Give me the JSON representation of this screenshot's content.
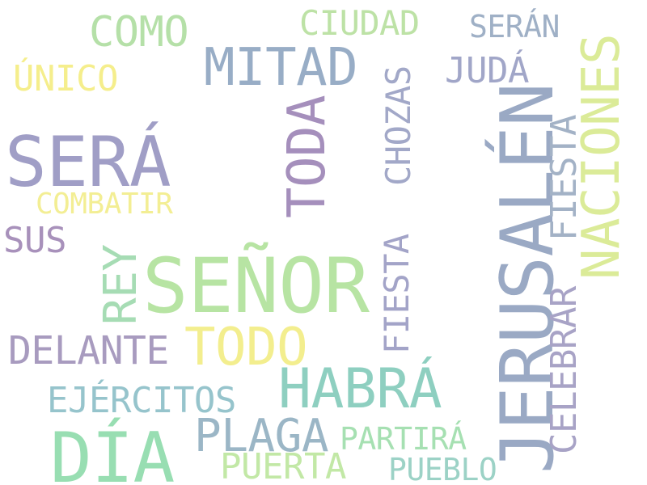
{
  "words": {
    "como": {
      "text": "COMO",
      "color": "#b5e0a8"
    },
    "ciudad": {
      "text": "CIUDAD",
      "color": "#bde2a6"
    },
    "seran": {
      "text": "SERÁN",
      "color": "#9fb0c6"
    },
    "mitad": {
      "text": "MITAD",
      "color": "#98adc6"
    },
    "unico": {
      "text": "ÚNICO",
      "color": "#f5ee8c"
    },
    "juda": {
      "text": "JUDÁ",
      "color": "#a1a6c8"
    },
    "sera": {
      "text": "SERÁ",
      "color": "#a09ec6"
    },
    "combatir": {
      "text": "COMBATIR",
      "color": "#f3ee94"
    },
    "sus": {
      "text": "SUS",
      "color": "#a891bb"
    },
    "senor": {
      "text": "SEÑOR",
      "color": "#b7e4a3"
    },
    "delante": {
      "text": "DELANTE",
      "color": "#a89bbf"
    },
    "todo": {
      "text": "TODO",
      "color": "#f3ee8e"
    },
    "habra": {
      "text": "HABRÁ",
      "color": "#8ecfc0"
    },
    "ejercitos": {
      "text": "EJÉRCITOS",
      "color": "#96c4cc"
    },
    "plaga": {
      "text": "PLAGA",
      "color": "#9bb6c6"
    },
    "partira": {
      "text": "PARTIRÁ",
      "color": "#a6e0b2"
    },
    "dia": {
      "text": "DÍA",
      "color": "#98deb2"
    },
    "puerta": {
      "text": "PUERTA",
      "color": "#c2e8a6"
    },
    "pueblo": {
      "text": "PUEBLO",
      "color": "#9cd2c6"
    },
    "toda": {
      "text": "TODA",
      "color": "#a58fbc"
    },
    "chozas": {
      "text": "CHOZAS",
      "color": "#a2a8c8"
    },
    "fiesta_1": {
      "text": "FIESTA",
      "color": "#a3a4c8"
    },
    "rey": {
      "text": "REY",
      "color": "#a6dcb4"
    },
    "jerusalen": {
      "text": "JERUSALÉN",
      "color": "#9aa9c4"
    },
    "naciones": {
      "text": "NACIONES",
      "color": "#dbeb98"
    },
    "fiesta_2": {
      "text": "FIESTA",
      "color": "#a3b2c6"
    },
    "celebrar": {
      "text": "CELEBRAR",
      "color": "#a8a3c6"
    }
  }
}
